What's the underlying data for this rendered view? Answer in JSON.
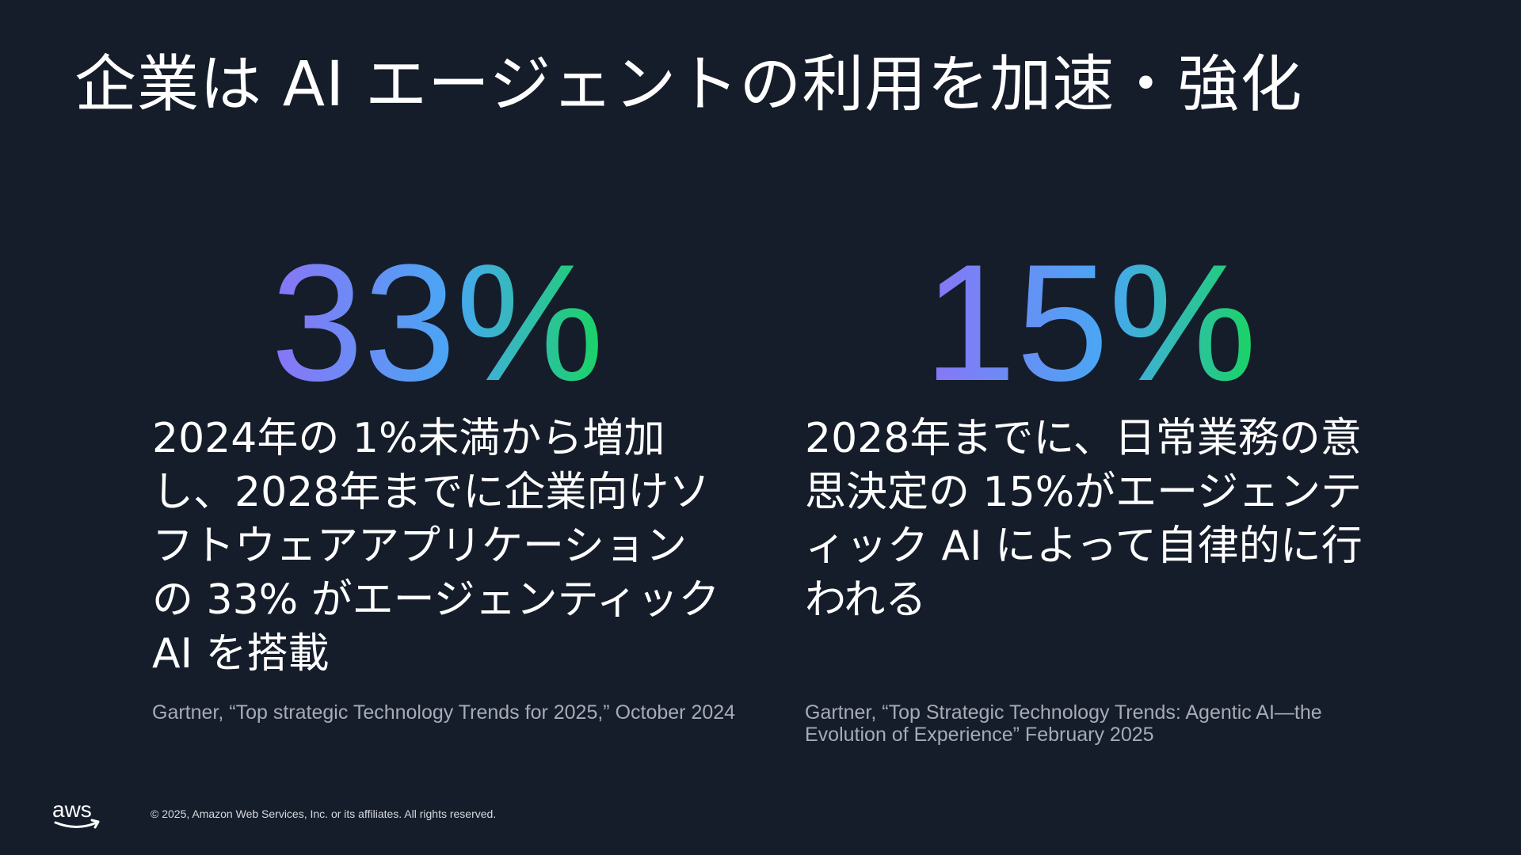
{
  "slide": {
    "title": "企業は AI エージェントの利用を加速・強化",
    "stats": [
      {
        "value": "33%",
        "description": "2024年の 1%未満から増加し、2028年までに企業向けソフトウェアアプリケーションの 33% がエージェンティック AI を搭載",
        "source": "Gartner, “Top strategic Technology Trends for 2025,” October 2024"
      },
      {
        "value": "15%",
        "description": "2028年までに、日常業務の意思決定の 15%がエージェンティック AI によって自律的に行われる",
        "source": "Gartner, “Top Strategic Technology Trends: Agentic AI—the Evolution of Experience” February 2025"
      }
    ],
    "footer": {
      "logo_text": "aws",
      "copyright": "© 2025, Amazon Web Services, Inc. or its affiliates. All rights reserved."
    }
  },
  "colors": {
    "background": "#161d2a",
    "gradient_start": "#8a74f6",
    "gradient_mid": "#48a7f4",
    "gradient_end": "#19d462",
    "source_text": "#a6abb6"
  }
}
